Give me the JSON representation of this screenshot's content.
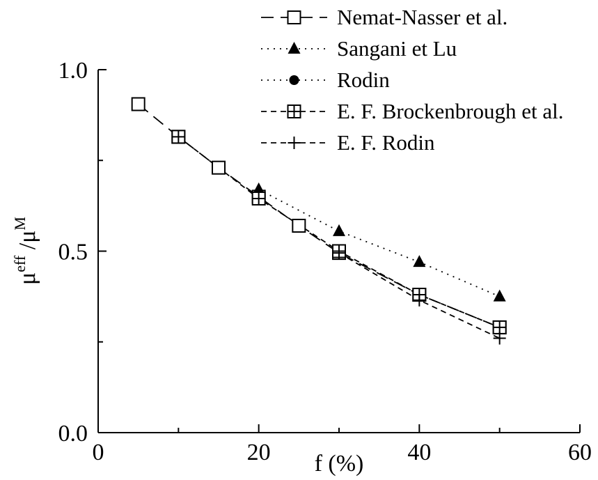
{
  "chart_data": {
    "type": "line",
    "xlabel": "f (%)",
    "ylabel_main": "μ",
    "ylabel_sup1": "eff",
    "ylabel_sep": " /μ",
    "ylabel_sup2": "M",
    "xlim": [
      0,
      60
    ],
    "ylim": [
      0,
      1
    ],
    "xticks": [
      0,
      20,
      40,
      60
    ],
    "xtick_labels": [
      "0",
      "20",
      "40",
      "60"
    ],
    "yticks": [
      0,
      0.5,
      1.0
    ],
    "ytick_labels": [
      "0.0",
      "0.5",
      "1.0"
    ],
    "grid": false,
    "legend_position": "top-right",
    "series": [
      {
        "name": "Nemat-Nasser et al.",
        "marker": "open-square",
        "dash": "long-dash",
        "x": [
          5,
          10,
          15,
          20,
          25,
          30,
          40,
          50
        ],
        "y": [
          0.905,
          0.815,
          0.73,
          0.65,
          0.57,
          0.495,
          0.38,
          0.29
        ]
      },
      {
        "name": "Sangani et Lu",
        "marker": "filled-triangle",
        "dash": "dotted",
        "x": [
          20,
          30,
          40,
          50
        ],
        "y": [
          0.67,
          0.555,
          0.47,
          0.375
        ]
      },
      {
        "name": "Rodin",
        "marker": "filled-circle",
        "dash": "dotted",
        "x": [
          40,
          50
        ],
        "y": [
          0.38,
          0.29
        ]
      },
      {
        "name": "E. F. Brockenbrough et al.",
        "marker": "boxed-plus",
        "dash": "short-dash",
        "x": [
          10,
          20,
          30,
          40,
          50
        ],
        "y": [
          0.815,
          0.645,
          0.5,
          0.38,
          0.29
        ]
      },
      {
        "name": "E. F. Rodin",
        "marker": "plus",
        "dash": "short-dash",
        "x": [
          30,
          40,
          50
        ],
        "y": [
          0.495,
          0.365,
          0.26
        ]
      }
    ]
  }
}
